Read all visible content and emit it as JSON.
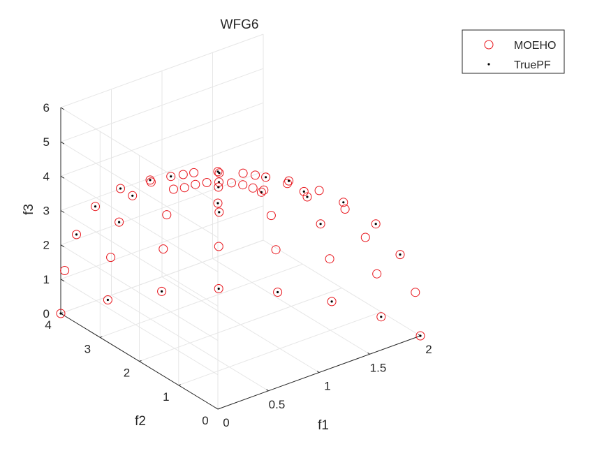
{
  "chart_data": {
    "type": "scatter3d",
    "title": "WFG6",
    "xlabel": "f1",
    "ylabel": "f2",
    "zlabel": "f3",
    "xlim": [
      0,
      2
    ],
    "ylim": [
      0,
      4
    ],
    "zlim": [
      0,
      6
    ],
    "xticks": [
      "0",
      "0.5",
      "1",
      "1.5",
      "2"
    ],
    "yticks": [
      "0",
      "1",
      "2",
      "3",
      "4"
    ],
    "zticks": [
      "0",
      "1",
      "2",
      "3",
      "4",
      "5",
      "6"
    ],
    "grid": true,
    "legend_position": "top-right",
    "colors": {
      "moeho": "#e8141b",
      "truepf": "#000000",
      "grid": "#e6e6e6",
      "axis": "#262626"
    },
    "series": [
      {
        "name": "MOEHO",
        "marker": "open-circle",
        "description_of_points": "points on the first octant of the ellipsoid (f1/2)^2 + (f2/4)^2 + (f3/6)^2 = 1",
        "points": [
          [
            2.0,
            0.0,
            0.0
          ],
          [
            1.95,
            0.87,
            0.0
          ],
          [
            1.8,
            1.74,
            0.0
          ],
          [
            1.56,
            2.5,
            0.0
          ],
          [
            1.23,
            3.15,
            0.0
          ],
          [
            0.85,
            3.62,
            0.0
          ],
          [
            0.43,
            3.91,
            0.0
          ],
          [
            0.0,
            4.0,
            0.0
          ],
          [
            1.95,
            0.0,
            1.32
          ],
          [
            1.9,
            0.85,
            1.32
          ],
          [
            1.76,
            1.69,
            1.32
          ],
          [
            1.52,
            2.44,
            1.32
          ],
          [
            1.2,
            3.07,
            1.32
          ],
          [
            0.83,
            3.53,
            1.32
          ],
          [
            0.42,
            3.81,
            1.32
          ],
          [
            0.0,
            3.9,
            1.32
          ],
          [
            1.8,
            0.0,
            2.58
          ],
          [
            1.76,
            0.78,
            2.58
          ],
          [
            1.62,
            1.56,
            2.58
          ],
          [
            1.4,
            2.25,
            2.58
          ],
          [
            1.11,
            2.83,
            2.58
          ],
          [
            0.76,
            3.26,
            2.58
          ],
          [
            0.39,
            3.52,
            2.58
          ],
          [
            0.0,
            3.6,
            2.58
          ],
          [
            1.56,
            0.0,
            3.73
          ],
          [
            1.52,
            0.68,
            3.73
          ],
          [
            1.41,
            1.36,
            3.73
          ],
          [
            1.21,
            1.95,
            3.73
          ],
          [
            0.96,
            2.46,
            3.73
          ],
          [
            0.66,
            2.83,
            3.73
          ],
          [
            0.34,
            3.05,
            3.73
          ],
          [
            0.0,
            3.12,
            3.73
          ],
          [
            1.24,
            0.0,
            4.7
          ],
          [
            1.21,
            0.54,
            4.7
          ],
          [
            1.12,
            1.08,
            4.7
          ],
          [
            0.97,
            1.55,
            4.7
          ],
          [
            0.77,
            1.95,
            4.7
          ],
          [
            0.53,
            2.25,
            4.7
          ],
          [
            0.27,
            2.42,
            4.7
          ],
          [
            0.0,
            2.48,
            4.7
          ],
          [
            0.85,
            0.0,
            5.43
          ],
          [
            0.83,
            0.37,
            5.43
          ],
          [
            0.76,
            0.74,
            5.43
          ],
          [
            0.66,
            1.06,
            5.43
          ],
          [
            0.52,
            1.34,
            5.43
          ],
          [
            0.36,
            1.54,
            5.43
          ],
          [
            0.18,
            1.66,
            5.43
          ],
          [
            0.0,
            1.7,
            5.43
          ],
          [
            0.43,
            0.0,
            5.86
          ],
          [
            0.42,
            0.19,
            5.86
          ],
          [
            0.39,
            0.37,
            5.86
          ],
          [
            0.34,
            0.53,
            5.86
          ],
          [
            0.27,
            0.67,
            5.86
          ],
          [
            0.19,
            0.77,
            5.86
          ],
          [
            0.1,
            0.83,
            5.86
          ],
          [
            0.0,
            0.85,
            5.86
          ],
          [
            0.0,
            0.0,
            6.0
          ]
        ]
      },
      {
        "name": "TruePF",
        "marker": "dot",
        "description_of_points": "reference front on the same ellipsoid surface",
        "points": [
          [
            2.0,
            0.0,
            0.0
          ],
          [
            1.95,
            0.87,
            0.0
          ],
          [
            1.8,
            1.74,
            0.0
          ],
          [
            1.56,
            2.5,
            0.0
          ],
          [
            1.23,
            3.15,
            0.0
          ],
          [
            0.85,
            3.62,
            0.0
          ],
          [
            0.43,
            3.91,
            0.0
          ],
          [
            0.0,
            4.0,
            0.0
          ],
          [
            1.8,
            0.0,
            2.58
          ],
          [
            1.62,
            1.56,
            2.58
          ],
          [
            1.11,
            2.83,
            2.58
          ],
          [
            0.39,
            3.52,
            2.58
          ],
          [
            0.0,
            3.6,
            2.58
          ],
          [
            1.56,
            0.0,
            3.73
          ],
          [
            1.41,
            1.36,
            3.73
          ],
          [
            0.96,
            2.46,
            3.73
          ],
          [
            0.34,
            3.05,
            3.73
          ],
          [
            0.0,
            3.12,
            3.73
          ],
          [
            1.24,
            0.0,
            4.7
          ],
          [
            1.12,
            1.08,
            4.7
          ],
          [
            0.77,
            1.95,
            4.7
          ],
          [
            0.27,
            2.42,
            4.7
          ],
          [
            0.0,
            2.48,
            4.7
          ],
          [
            0.85,
            0.0,
            5.43
          ],
          [
            0.76,
            0.74,
            5.43
          ],
          [
            0.52,
            1.34,
            5.43
          ],
          [
            0.18,
            1.66,
            5.43
          ],
          [
            0.43,
            0.0,
            5.86
          ],
          [
            0.27,
            0.67,
            5.86
          ],
          [
            0.0,
            0.0,
            6.0
          ]
        ]
      }
    ]
  }
}
